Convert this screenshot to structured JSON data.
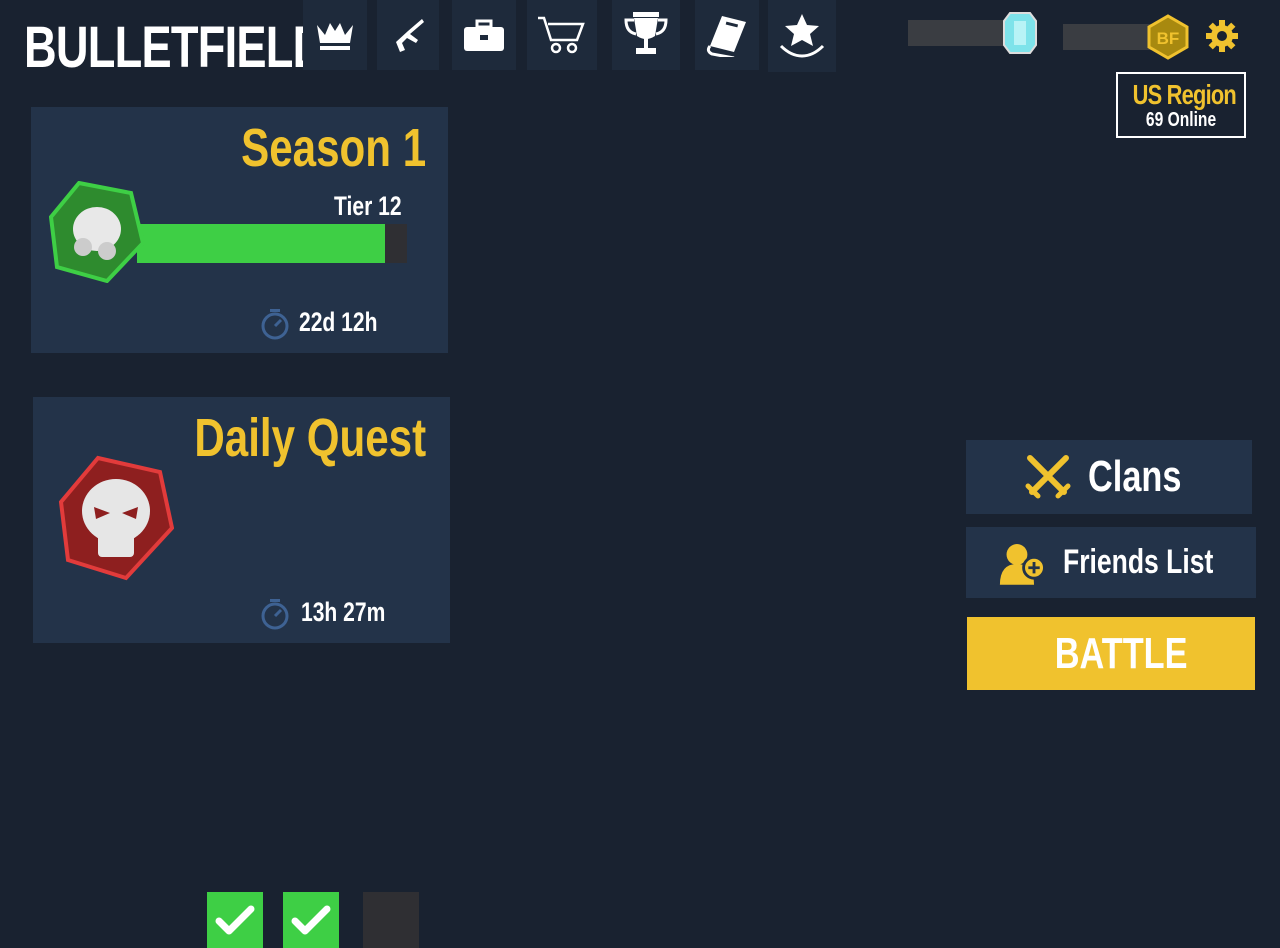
{
  "header": {
    "logo": "BULLETFIELD",
    "nav": [
      {
        "icon": "crown-icon"
      },
      {
        "icon": "rifle-icon"
      },
      {
        "icon": "briefcase-icon"
      },
      {
        "icon": "cart-icon"
      },
      {
        "icon": "trophy-icon"
      },
      {
        "icon": "book-icon"
      },
      {
        "icon": "star-laurel-icon"
      }
    ],
    "region": {
      "name": "US Region",
      "online": "69 Online"
    }
  },
  "season": {
    "title": "Season 1",
    "tier": "Tier 12",
    "progress": 0.92,
    "timer": "22d 12h"
  },
  "daily_quest": {
    "title": "Daily Quest",
    "quests_complete": [
      true,
      true,
      false
    ],
    "timer": "13h 27m"
  },
  "buttons": {
    "clans": "Clans",
    "friends": "Friends List",
    "battle": "BATTLE"
  },
  "colors": {
    "accent": "#f0c22e",
    "green": "#3ecf45",
    "panel": "#233349",
    "background": "#192230"
  }
}
